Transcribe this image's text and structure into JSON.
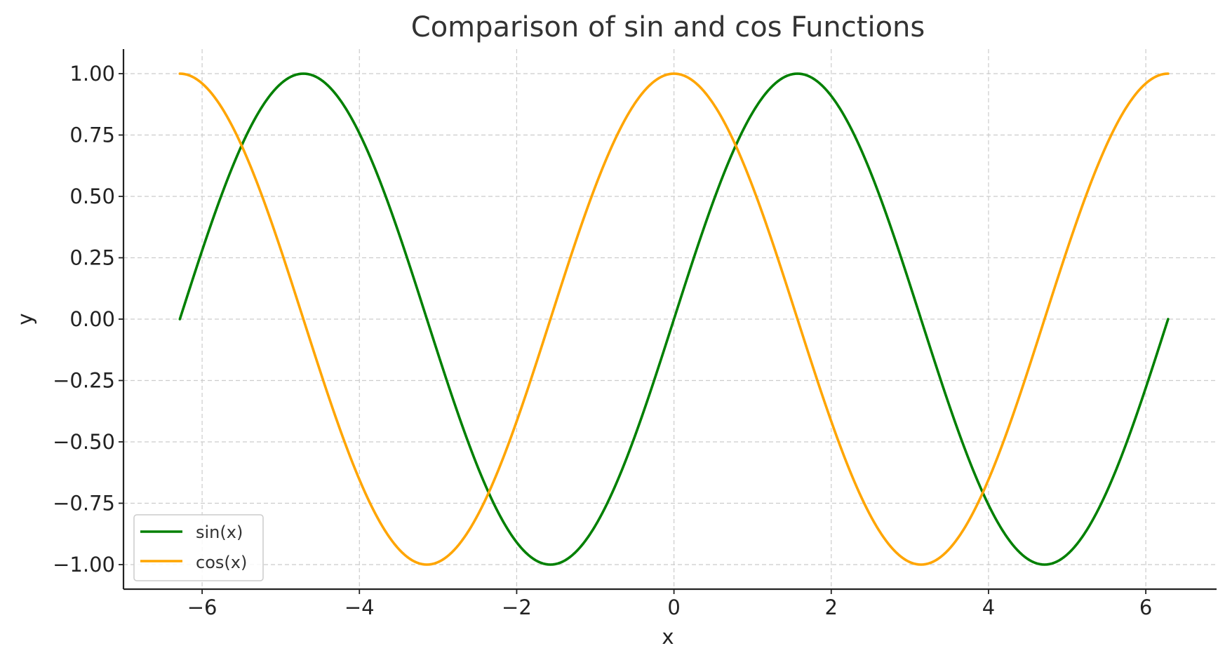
{
  "chart_data": {
    "type": "line",
    "title": "Comparison of sin and cos Functions",
    "xlabel": "x",
    "ylabel": "y",
    "xlim": [
      -7,
      6.9
    ],
    "ylim": [
      -1.1,
      1.1
    ],
    "x_ticks": [
      -6,
      -4,
      -2,
      0,
      2,
      4,
      6
    ],
    "x_tick_labels": [
      "−6",
      "−4",
      "−2",
      "0",
      "2",
      "4",
      "6"
    ],
    "y_ticks": [
      1.0,
      0.75,
      0.5,
      0.25,
      0.0,
      -0.25,
      -0.5,
      -0.75,
      -1.0
    ],
    "y_tick_labels": [
      "1.00",
      "0.75",
      "0.50",
      "0.25",
      "0.00",
      "−0.25",
      "−0.50",
      "−0.75",
      "−1.00"
    ],
    "grid": true,
    "legend_position": "lower-left",
    "x_range": [
      -6.2832,
      6.2832
    ],
    "series": [
      {
        "name": "sin(x)",
        "color": "#008000",
        "x": [
          -6.2832,
          -5.7596,
          -5.236,
          -4.7124,
          -4.1888,
          -3.6652,
          -3.1416,
          -2.618,
          -2.0944,
          -1.5708,
          -1.0472,
          -0.5236,
          0.0,
          0.5236,
          1.0472,
          1.5708,
          2.0944,
          2.618,
          3.1416,
          3.6652,
          4.1888,
          4.7124,
          5.236,
          5.7596,
          6.2832
        ],
        "y": [
          0.0,
          0.5,
          0.866,
          1.0,
          0.866,
          0.5,
          0.0,
          -0.5,
          -0.866,
          -1.0,
          -0.866,
          -0.5,
          0.0,
          0.5,
          0.866,
          1.0,
          0.866,
          0.5,
          0.0,
          -0.5,
          -0.866,
          -1.0,
          -0.866,
          -0.5,
          0.0
        ]
      },
      {
        "name": "cos(x)",
        "color": "#FFA500",
        "x": [
          -6.2832,
          -5.7596,
          -5.236,
          -4.7124,
          -4.1888,
          -3.6652,
          -3.1416,
          -2.618,
          -2.0944,
          -1.5708,
          -1.0472,
          -0.5236,
          0.0,
          0.5236,
          1.0472,
          1.5708,
          2.0944,
          2.618,
          3.1416,
          3.6652,
          4.1888,
          4.7124,
          5.236,
          5.7596,
          6.2832
        ],
        "y": [
          1.0,
          0.866,
          0.5,
          0.0,
          -0.5,
          -0.866,
          -1.0,
          -0.866,
          -0.5,
          0.0,
          0.5,
          0.866,
          1.0,
          0.866,
          0.5,
          0.0,
          -0.5,
          -0.866,
          -1.0,
          -0.866,
          -0.5,
          0.0,
          0.5,
          0.866,
          1.0
        ]
      }
    ]
  }
}
